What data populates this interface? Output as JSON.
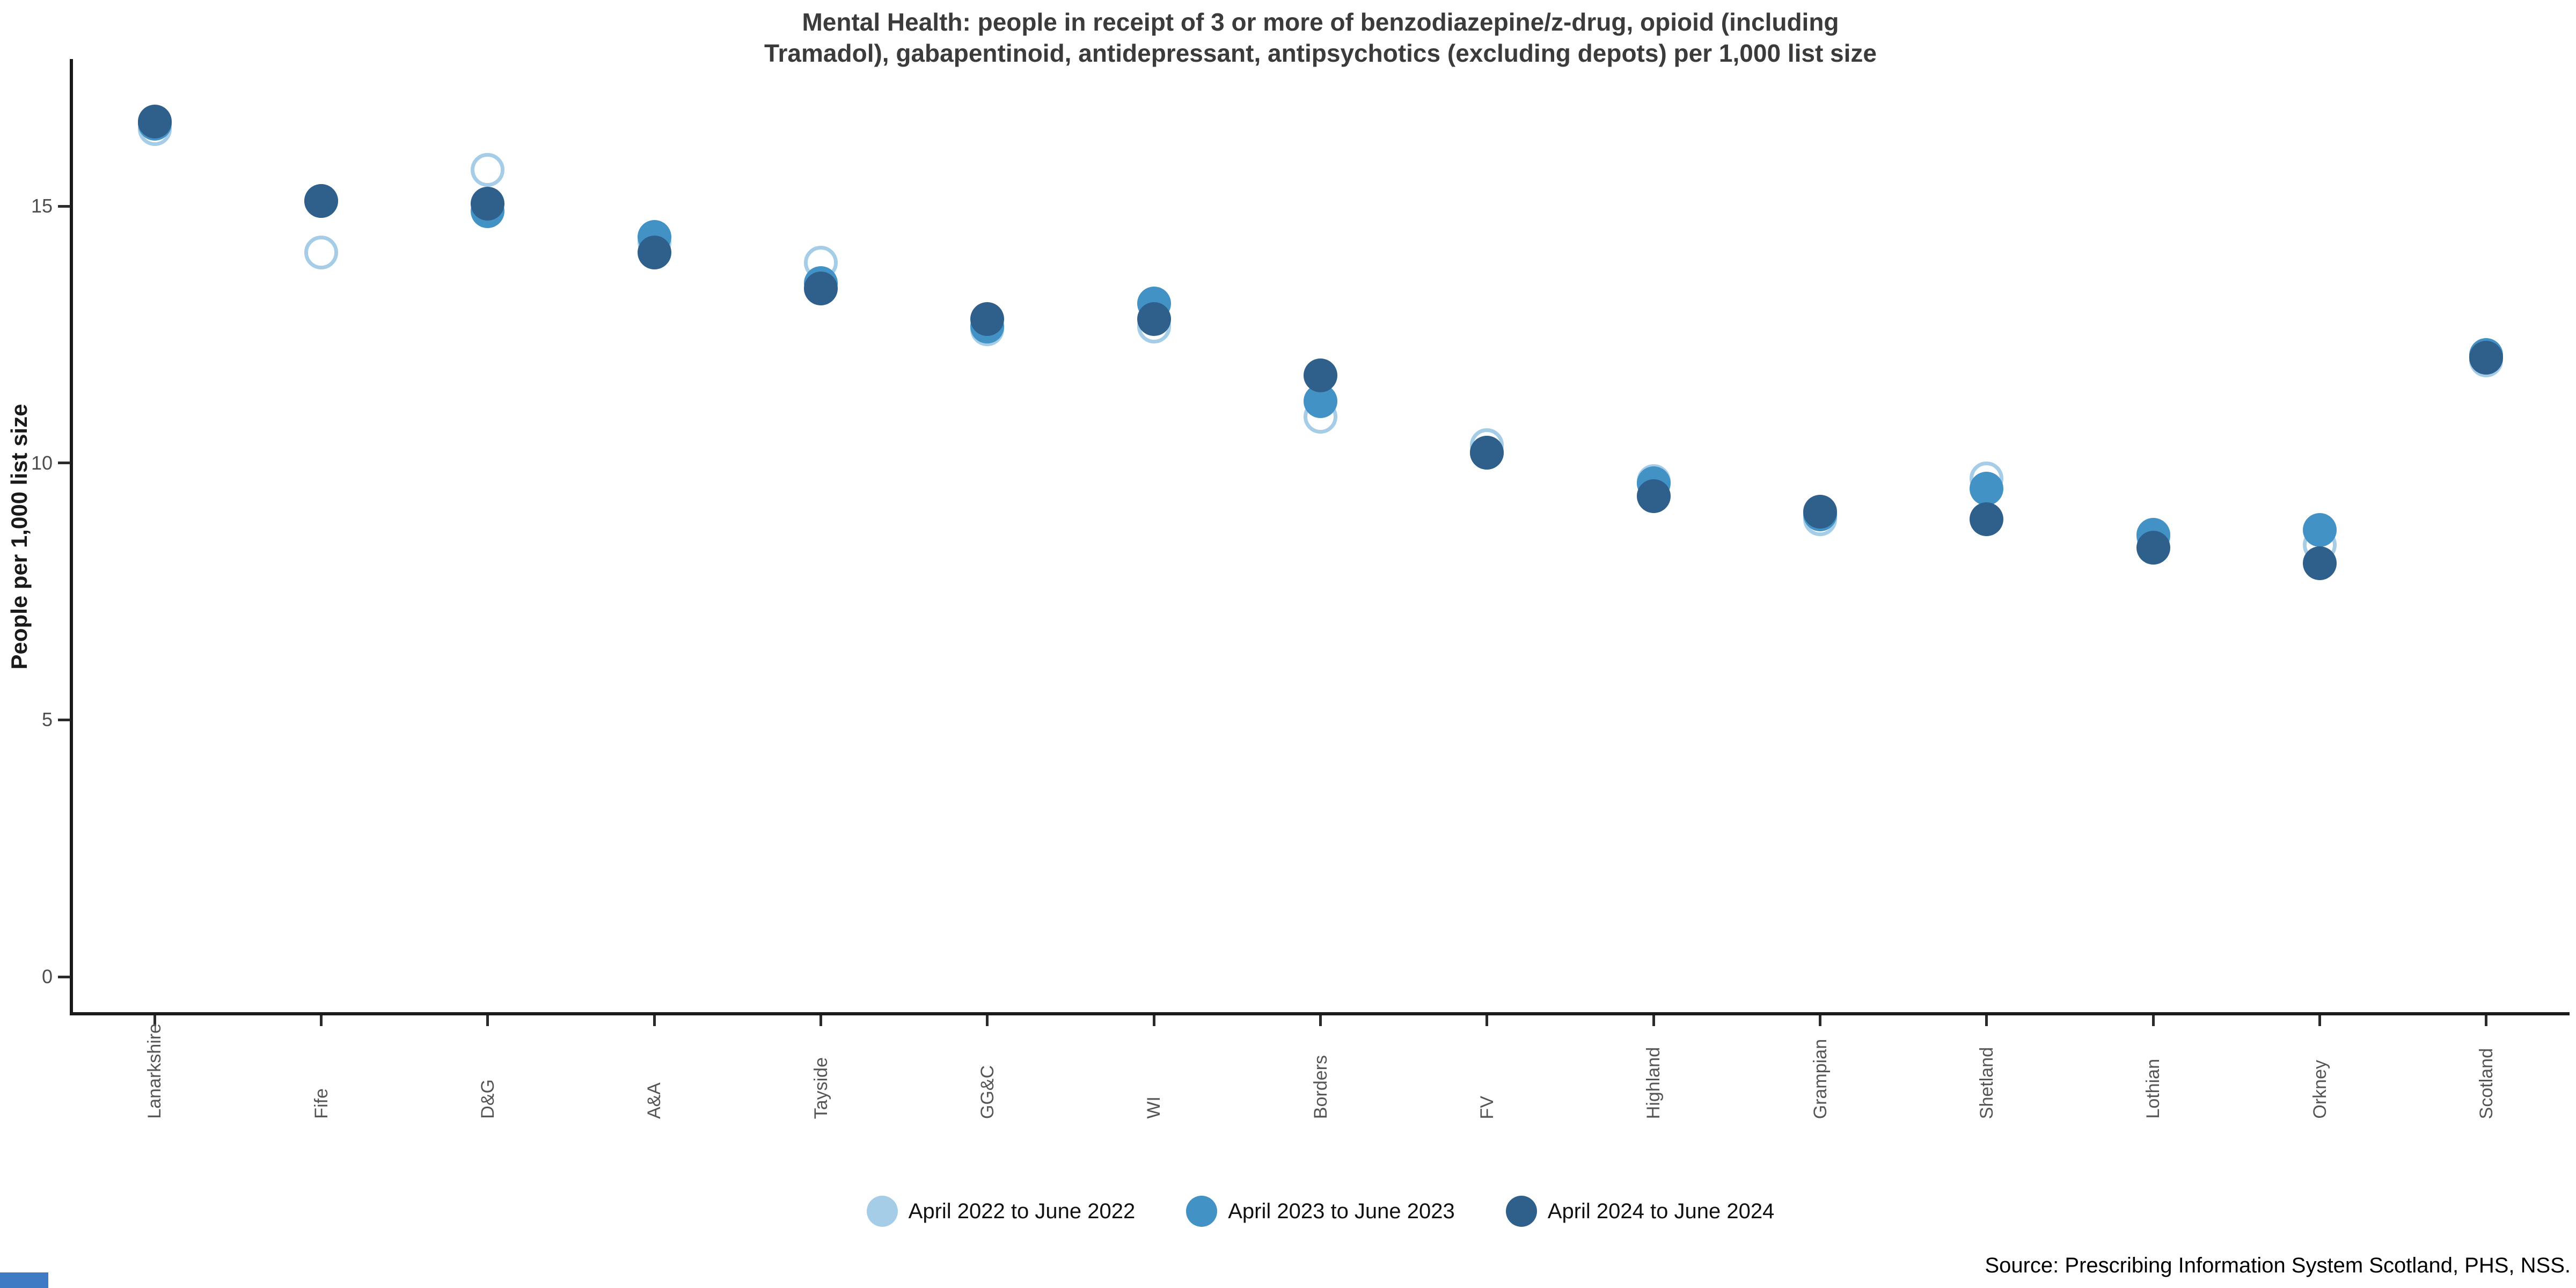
{
  "title": {
    "line1": "Mental Health: people in receipt of 3 or more of benzodiazepine/z-drug, opioid (including",
    "line2": "Tramadol), gabapentinoid, antidepressant, antipsychotics (excluding depots) per 1,000 list size"
  },
  "source": "Source: Prescribing Information System Scotland, PHS, NSS.",
  "colors": {
    "series_2022": "#A5CDE7",
    "series_2023": "#4292C6",
    "series_2024": "#2F608C",
    "axis": "#1a1a1a",
    "y_tick_label": "#4d4d4d",
    "x_tick_label": "#555555",
    "title_text": "#3b3b3b",
    "corner_accent": "#3E7BC4"
  },
  "chart_data": {
    "type": "scatter",
    "title": "Mental Health: people in receipt of 3 or more of benzodiazepine/z-drug, opioid (including Tramadol), gabapentinoid, antidepressant, antipsychotics (excluding depots) per 1,000 list size",
    "xlabel": "",
    "ylabel": "People per 1,000 list size",
    "categories": [
      "Lanarkshire",
      "Fife",
      "D&G",
      "A&A",
      "Tayside",
      "GG&C",
      "WI",
      "Borders",
      "FV",
      "Highland",
      "Grampian",
      "Shetland",
      "Lothian",
      "Orkney",
      "Scotland"
    ],
    "series": [
      {
        "name": "April 2022 to June 2022",
        "style": "open",
        "color": "#A5CDE7",
        "values": [
          16.5,
          14.1,
          15.7,
          14.3,
          13.9,
          12.6,
          12.65,
          10.9,
          10.35,
          9.65,
          8.9,
          9.7,
          8.55,
          8.4,
          12.0
        ]
      },
      {
        "name": "April 2023 to June 2023",
        "style": "filled",
        "color": "#4292C6",
        "values": [
          16.6,
          15.1,
          14.9,
          14.4,
          13.5,
          12.65,
          13.1,
          11.2,
          10.2,
          9.6,
          9.0,
          9.5,
          8.6,
          8.7,
          12.1
        ]
      },
      {
        "name": "April 2024 to June 2024",
        "style": "filled",
        "color": "#2F608C",
        "values": [
          16.65,
          15.1,
          15.05,
          14.1,
          13.4,
          12.8,
          12.8,
          11.7,
          10.2,
          9.35,
          9.05,
          8.9,
          8.35,
          8.05,
          12.05
        ]
      }
    ],
    "yticks": [
      0,
      5,
      10,
      15
    ],
    "ylim": [
      0,
      17.8
    ],
    "grid": false,
    "x_tick_rotation": 90,
    "legend_position": "bottom",
    "marker_size_px": 63
  },
  "legend": {
    "items": [
      "April 2022 to June 2022",
      "April 2023 to June 2023",
      "April 2024 to June 2024"
    ]
  }
}
